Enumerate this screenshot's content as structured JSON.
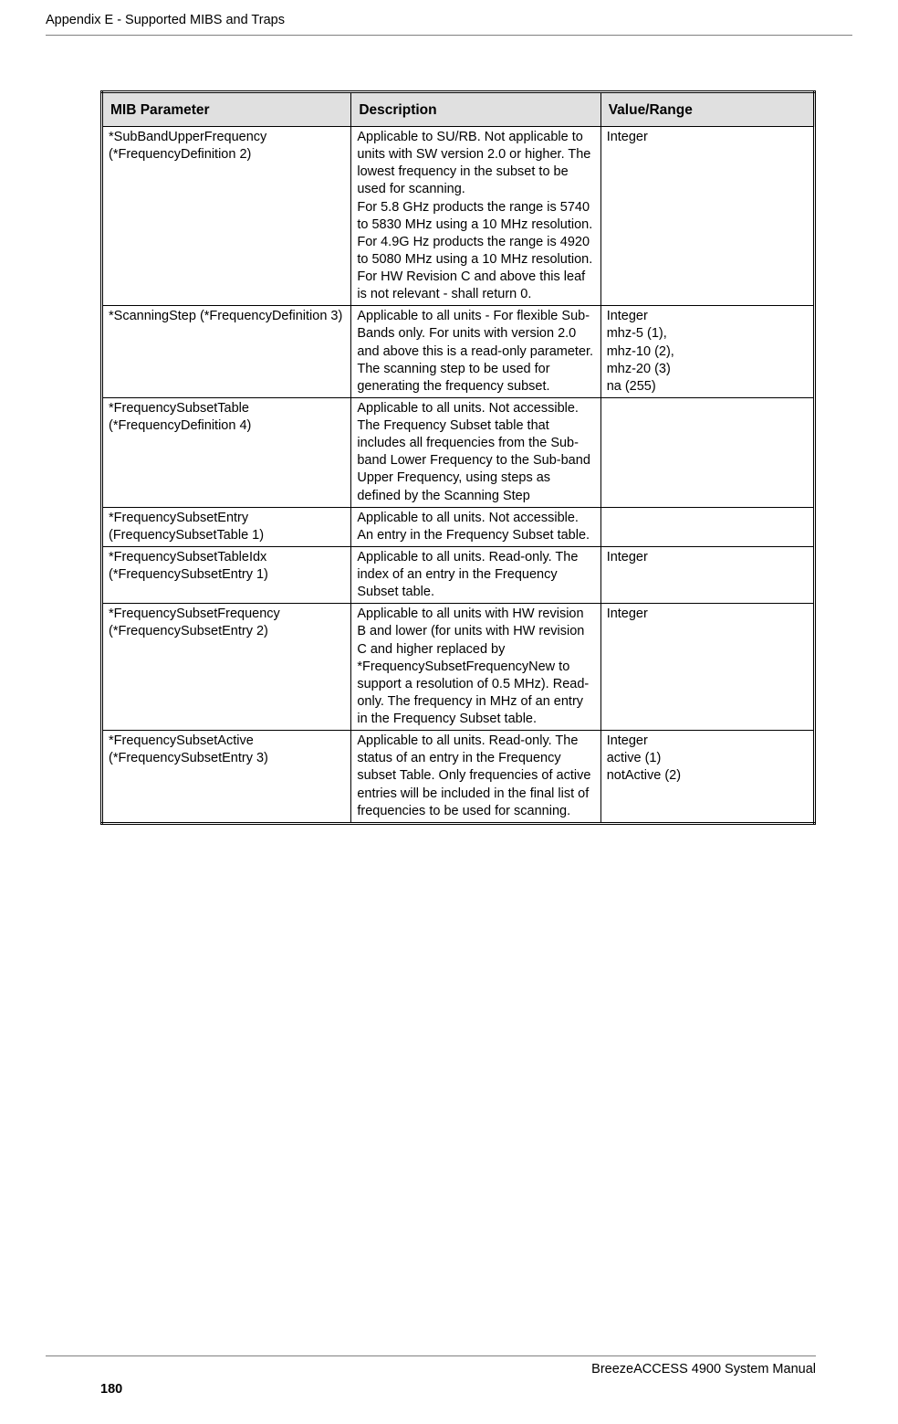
{
  "header": {
    "title": "Appendix E - Supported MIBS and Traps"
  },
  "table": {
    "columns": {
      "c1": "MIB Parameter",
      "c2": "Description",
      "c3": "Value/Range"
    },
    "rows": [
      {
        "param": "*SubBandUpperFrequency (*FrequencyDefinition 2)",
        "desc": "Applicable to SU/RB. Not applicable to units with SW version 2.0 or higher. The lowest frequency in the subset to be used for scanning.\nFor 5.8 GHz products the range is 5740 to 5830 MHz using a 10 MHz resolution. For 4.9G Hz products the range is 4920 to 5080 MHz using a 10 MHz resolution. For HW Revision C and above this leaf is not relevant - shall return 0.",
        "range": "Integer"
      },
      {
        "param": "*ScanningStep (*FrequencyDefinition 3)",
        "desc": "Applicable to all units - For flexible Sub-Bands only. For units with version 2.0 and above this is a read-only parameter.\nThe scanning step to be used for generating the frequency subset.",
        "range": "Integer\nmhz-5 (1),\nmhz-10 (2),\nmhz-20 (3)\nna (255)"
      },
      {
        "param": "*FrequencySubsetTable (*FrequencyDefinition 4)",
        "desc": "Applicable to all units. Not accessible. The Frequency Subset table that includes all frequencies from the Sub-band Lower Frequency to the Sub-band Upper Frequency, using steps as defined by the Scanning Step",
        "range": ""
      },
      {
        "param": "*FrequencySubsetEntry (FrequencySubsetTable 1)",
        "desc": "Applicable to all units. Not accessible. An entry in the Frequency Subset table.",
        "range": ""
      },
      {
        "param": "*FrequencySubsetTableIdx (*FrequencySubsetEntry 1)",
        "desc": "Applicable to all units. Read-only. The index of an entry in the Frequency Subset table.",
        "range": "Integer"
      },
      {
        "param": "*FrequencySubsetFrequency (*FrequencySubsetEntry 2)",
        "desc": "Applicable to all units with HW revision B and lower (for units with HW revision C and higher replaced by *FrequencySubsetFrequencyNew to support a resolution of 0.5 MHz).  Read-only. The frequency in MHz of an entry in the Frequency Subset table.",
        "range": "Integer"
      },
      {
        "param": "*FrequencySubsetActive (*FrequencySubsetEntry 3)",
        "desc": "Applicable to all units. Read-only. The status of an entry in the Frequency subset Table. Only frequencies of active entries will be included in the final list of frequencies to be used for scanning.",
        "range": "Integer\nactive (1)\nnotActive (2)"
      }
    ]
  },
  "footer": {
    "manual": "BreezeACCESS 4900 System Manual",
    "page": "180"
  }
}
